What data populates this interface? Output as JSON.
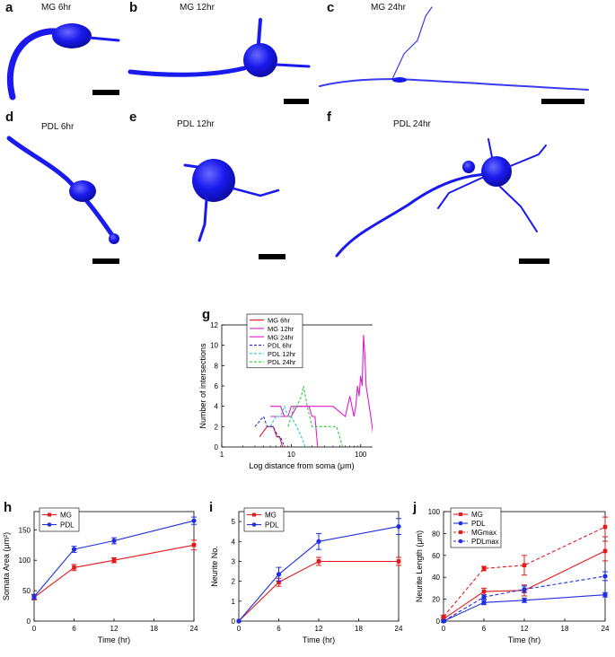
{
  "panels": {
    "a": {
      "letter": "a",
      "title": "MG 6hr"
    },
    "b": {
      "letter": "b",
      "title": "MG 12hr"
    },
    "c": {
      "letter": "c",
      "title": "MG 24hr"
    },
    "d": {
      "letter": "d",
      "title": "PDL 6hr"
    },
    "e": {
      "letter": "e",
      "title": "PDL 12hr"
    },
    "f": {
      "letter": "f",
      "title": "PDL 24hr"
    },
    "g": {
      "letter": "g"
    },
    "h": {
      "letter": "h"
    },
    "i": {
      "letter": "i"
    },
    "j": {
      "letter": "j"
    }
  },
  "colors": {
    "cell": "#1a1aee",
    "red": "#e31a1c",
    "blue": "#1f2fe0",
    "magenta": "#e01ccf",
    "green": "#2ecc40",
    "teal": "#22cfc0"
  },
  "chart_data": [
    {
      "id": "g",
      "type": "line",
      "xlabel": "Log distance from soma (μm)",
      "ylabel": "Number of intersections",
      "xscale": "log",
      "xlim": [
        1,
        200
      ],
      "ylim": [
        0,
        12
      ],
      "xticks": [
        "1",
        "10",
        "100"
      ],
      "yticks": [
        "0",
        "2",
        "4",
        "6",
        "8",
        "10",
        "12"
      ],
      "legend": "top-left",
      "series": [
        {
          "name": "MG 6hr",
          "color": "#e31a1c",
          "dash": false,
          "x": [
            3.5,
            4.5,
            5.5,
            6.2,
            6.8,
            7.5
          ],
          "y": [
            1,
            2,
            2,
            1,
            1,
            0
          ]
        },
        {
          "name": "MG 12hr",
          "color": "#e01ccf",
          "dash": false,
          "x": [
            5,
            6,
            8,
            9,
            10,
            12,
            15,
            18,
            20,
            22,
            24
          ],
          "y": [
            3,
            3,
            3,
            3,
            3,
            4,
            4,
            4,
            3,
            3,
            0
          ]
        },
        {
          "name": "MG 24hr",
          "color": "#e01ccf",
          "dash": false,
          "x": [
            5,
            6,
            7,
            8,
            9,
            10,
            12,
            20,
            40,
            60,
            70,
            80,
            85,
            90,
            95,
            100,
            105,
            110,
            115,
            120,
            140,
            160
          ],
          "y": [
            4,
            4,
            4,
            3,
            3,
            4,
            4,
            4,
            4,
            3,
            5,
            3,
            4,
            6,
            5,
            7,
            6,
            11,
            9,
            6,
            3,
            0
          ]
        },
        {
          "name": "PDL 6hr",
          "color": "#1f2fe0",
          "dash": true,
          "x": [
            3,
            4,
            4.5,
            5.5,
            6.5,
            7,
            8
          ],
          "y": [
            2,
            3,
            2,
            2,
            1,
            1,
            0
          ]
        },
        {
          "name": "PDL 12hr",
          "color": "#22cfc0",
          "dash": true,
          "x": [
            5,
            6,
            7,
            8,
            9,
            10,
            12,
            14,
            16
          ],
          "y": [
            2,
            3,
            3,
            4,
            3,
            3,
            2,
            1,
            0
          ]
        },
        {
          "name": "PDL 24hr",
          "color": "#2ecc40",
          "dash": true,
          "x": [
            9,
            10,
            11,
            12,
            14,
            15,
            16,
            17,
            20,
            25,
            30,
            45,
            55
          ],
          "y": [
            2,
            3,
            4,
            4,
            5,
            6,
            5,
            4,
            2,
            2,
            2,
            2,
            0
          ]
        }
      ]
    },
    {
      "id": "h",
      "type": "line",
      "xlabel": "Time (hr)",
      "ylabel": "Somata Area (μm²)",
      "xlim": [
        0,
        24
      ],
      "ylim": [
        0,
        180
      ],
      "xticks": [
        "0",
        "6",
        "12",
        "18",
        "24"
      ],
      "yticks": [
        "0",
        "50",
        "100",
        "150"
      ],
      "legend": "top-left",
      "x": [
        0,
        6,
        12,
        24
      ],
      "series": [
        {
          "name": "MG",
          "color": "#e31a1c",
          "marker": "square",
          "values": [
            39,
            88,
            100,
            125
          ],
          "err": [
            4,
            5,
            4,
            8
          ]
        },
        {
          "name": "PDL",
          "color": "#1f2fe0",
          "marker": "circle",
          "values": [
            40,
            118,
            132,
            165
          ],
          "err": [
            4,
            5,
            5,
            6
          ]
        }
      ]
    },
    {
      "id": "i",
      "type": "line",
      "xlabel": "Time (hr)",
      "ylabel": "Neurite No.",
      "xlim": [
        0,
        24
      ],
      "ylim": [
        0,
        5.5
      ],
      "xticks": [
        "0",
        "6",
        "12",
        "18",
        "24"
      ],
      "yticks": [
        "0",
        "1",
        "2",
        "3",
        "4",
        "5"
      ],
      "legend": "top-left",
      "x": [
        0,
        6,
        12,
        24
      ],
      "series": [
        {
          "name": "MG",
          "color": "#e31a1c",
          "marker": "square",
          "values": [
            0,
            1.95,
            3.0,
            3.0
          ],
          "err": [
            0,
            0.2,
            0.2,
            0.2
          ]
        },
        {
          "name": "PDL",
          "color": "#1f2fe0",
          "marker": "circle",
          "values": [
            0,
            2.35,
            4.0,
            4.75
          ],
          "err": [
            0,
            0.35,
            0.4,
            0.4
          ]
        }
      ]
    },
    {
      "id": "j",
      "type": "line",
      "xlabel": "Time (hr)",
      "ylabel": "Neurite Length (μm)",
      "xlim": [
        0,
        24
      ],
      "ylim": [
        0,
        100
      ],
      "xticks": [
        "0",
        "6",
        "12",
        "18",
        "24"
      ],
      "yticks": [
        "0",
        "20",
        "40",
        "60",
        "80",
        "100"
      ],
      "legend": "top-left",
      "x": [
        0,
        6,
        12,
        24
      ],
      "series": [
        {
          "name": "MG",
          "color": "#e31a1c",
          "marker": "square",
          "dash": false,
          "values": [
            2,
            27,
            28,
            64
          ],
          "err": [
            1,
            3,
            5,
            9
          ]
        },
        {
          "name": "PDL",
          "color": "#1f2fe0",
          "marker": "circle",
          "dash": false,
          "values": [
            0,
            17,
            19,
            24
          ],
          "err": [
            1,
            2,
            2,
            2
          ]
        },
        {
          "name": "MGmax",
          "color": "#e31a1c",
          "marker": "square",
          "dash": true,
          "values": [
            4,
            48,
            51,
            86
          ],
          "err": [
            1,
            2,
            9,
            9
          ]
        },
        {
          "name": "PDLmax",
          "color": "#1f2fe0",
          "marker": "circle",
          "dash": true,
          "values": [
            0,
            22,
            29,
            41
          ],
          "err": [
            1,
            2,
            3,
            4
          ]
        }
      ]
    }
  ]
}
